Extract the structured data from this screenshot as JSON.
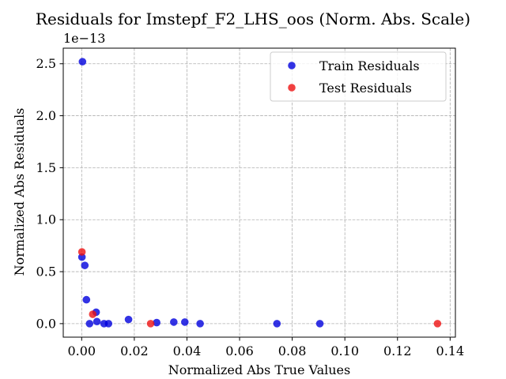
{
  "chart_data": {
    "type": "scatter",
    "title": "Residuals for Imstepf_F2_LHS_oos (Norm. Abs. Scale)",
    "xlabel": "Normalized Abs True Values",
    "ylabel": "Normalized Abs Residuals",
    "y_offset_label": "1e−13",
    "xlim": [
      -0.007,
      0.142
    ],
    "ylim": [
      -0.13,
      2.65
    ],
    "xticks": [
      0.0,
      0.02,
      0.04,
      0.06,
      0.08,
      0.1,
      0.12,
      0.14
    ],
    "xtick_labels": [
      "0.00",
      "0.02",
      "0.04",
      "0.06",
      "0.08",
      "0.10",
      "0.12",
      "0.14"
    ],
    "yticks": [
      0.0,
      0.5,
      1.0,
      1.5,
      2.0,
      2.5
    ],
    "ytick_labels": [
      "0.0",
      "0.5",
      "1.0",
      "1.5",
      "2.0",
      "2.5"
    ],
    "grid": true,
    "legend_position": "top-right",
    "series": [
      {
        "name": "Train Residuals",
        "color": "#0000dd",
        "points": [
          [
            0.0003,
            2.52
          ],
          [
            0.0001,
            0.64
          ],
          [
            0.0012,
            0.56
          ],
          [
            0.0018,
            0.23
          ],
          [
            0.0055,
            0.11
          ],
          [
            0.003,
            0.0
          ],
          [
            0.0058,
            0.02
          ],
          [
            0.0085,
            0.0
          ],
          [
            0.0102,
            0.0
          ],
          [
            0.0178,
            0.04
          ],
          [
            0.0285,
            0.01
          ],
          [
            0.035,
            0.015
          ],
          [
            0.0392,
            0.015
          ],
          [
            0.045,
            0.0
          ],
          [
            0.0742,
            0.0
          ],
          [
            0.0905,
            0.0
          ]
        ]
      },
      {
        "name": "Test Residuals",
        "color": "#ee1111",
        "points": [
          [
            0.0001,
            0.69
          ],
          [
            0.0042,
            0.09
          ],
          [
            0.0262,
            0.0
          ],
          [
            0.1352,
            0.0
          ]
        ]
      }
    ]
  }
}
